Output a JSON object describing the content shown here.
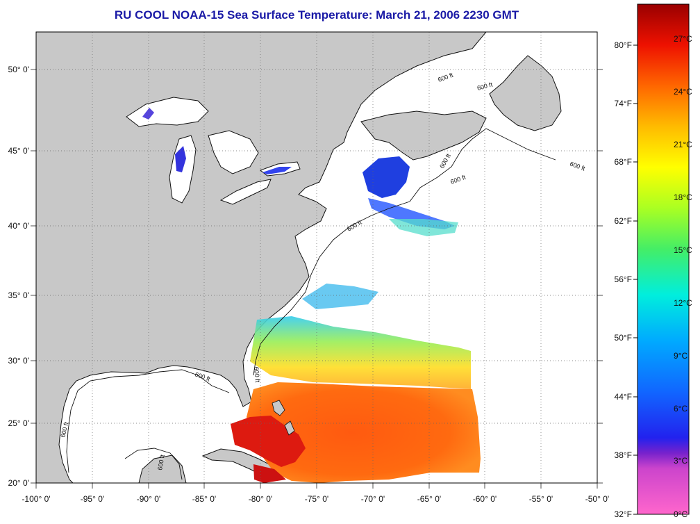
{
  "title": "RU COOL  NOAA-15  Sea Surface Temperature:  March 21, 2006 2230 GMT",
  "map": {
    "lon_range": [
      -100,
      -50
    ],
    "lat_range": [
      20,
      52.5
    ],
    "grid": true,
    "lon_ticks": [
      "-100° 0'",
      "-95° 0'",
      "-90° 0'",
      "-85° 0'",
      "-80° 0'",
      "-75° 0'",
      "-70° 0'",
      "-65° 0'",
      "-60° 0'",
      "-55° 0'",
      "-50° 0'"
    ],
    "lat_ticks": [
      "50° 0'",
      "45° 0'",
      "40° 0'",
      "35° 0'",
      "30° 0'",
      "25° 0'",
      "20° 0'"
    ],
    "contour_labels": [
      "600 ft",
      "600 ft",
      "600 ft",
      "600 ft",
      "600 ft",
      "600 ft",
      "600 ft",
      "600 ft",
      "600 ft",
      "600 ft"
    ],
    "colors": {
      "land": "#c8c8c8",
      "ocean": "#ffffff",
      "grid": "#555555"
    }
  },
  "colorbar": {
    "range_c": [
      0,
      29
    ],
    "fahrenheit_labels": [
      "80°F",
      "74°F",
      "68°F",
      "62°F",
      "56°F",
      "50°F",
      "44°F",
      "38°F",
      "32°F"
    ],
    "celsius_labels": [
      "27°C",
      "24°C",
      "21°C",
      "18°C",
      "15°C",
      "12°C",
      "9°C",
      "6°C",
      "3°C",
      "0°C"
    ],
    "colors": [
      "#ff66cc",
      "#9922cc",
      "#2222ee",
      "#1188ff",
      "#00ddff",
      "#22ee99",
      "#aaff22",
      "#ffff00",
      "#ffaa00",
      "#ff5500",
      "#ee0000",
      "#990000"
    ]
  }
}
